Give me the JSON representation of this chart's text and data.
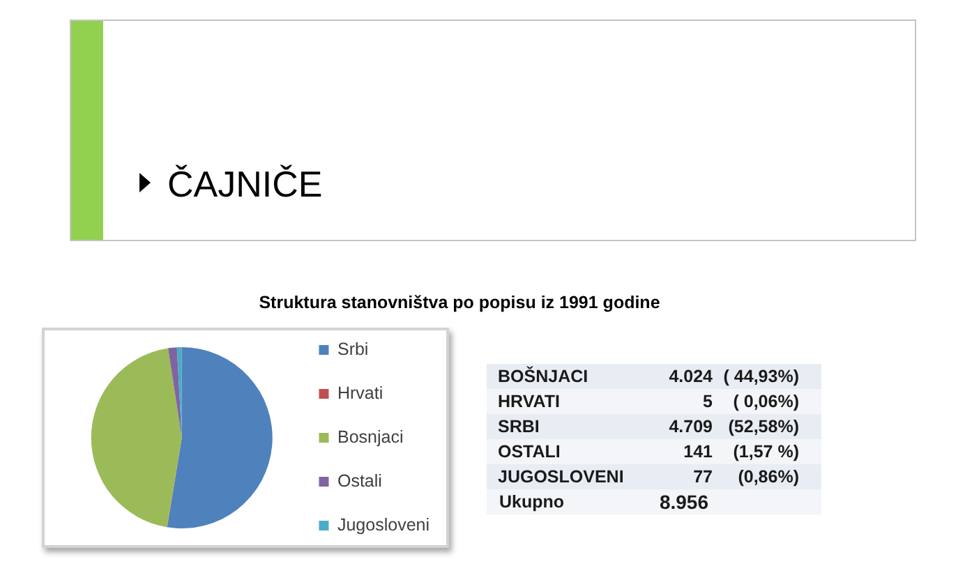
{
  "chart_data": [
    {
      "type": "other",
      "title": "ČAJNIČE"
    },
    {
      "type": "pie",
      "title": "Struktura stanovništva po popisu iz 1991 godine",
      "categories": [
        "Srbi",
        "Hrvati",
        "Bosnjaci",
        "Ostali",
        "Jugosloveni"
      ],
      "values": [
        52.58,
        0.06,
        44.93,
        1.57,
        0.86
      ],
      "colors": [
        "#4f81bd",
        "#c0504d",
        "#9bbb59",
        "#8064a2",
        "#4bacc6"
      ],
      "legend": "right"
    },
    {
      "type": "other",
      "annotations": [
        "BOŠNJACI",
        "4.024",
        "( 44,93%)",
        "HRVATI",
        "5",
        "( 0,06%)",
        "SRBI",
        "4.709",
        "(52,58%)",
        "OSTALI",
        "141",
        "(1,57 %)",
        "JUGOSLOVENI",
        "77",
        "(0,86%)",
        "Ukupno",
        "8.956"
      ]
    }
  ]
}
